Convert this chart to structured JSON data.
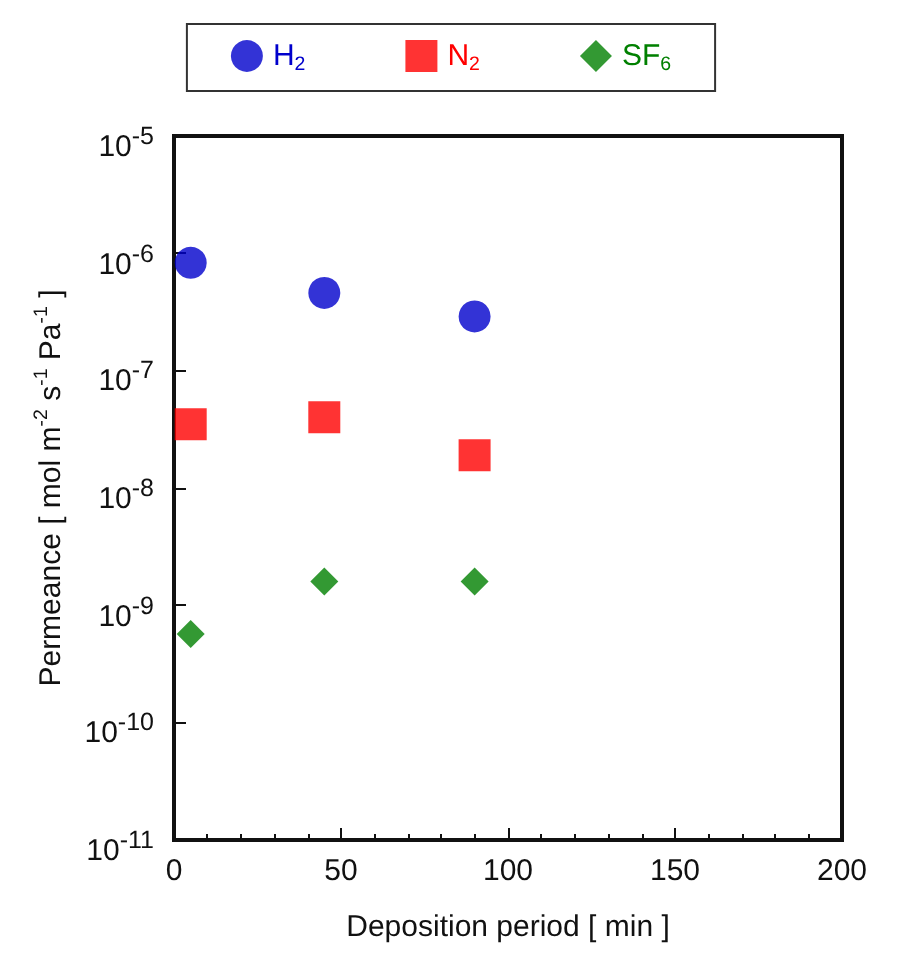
{
  "chart_data": {
    "type": "scatter",
    "xlabel": "Deposition period [ min ]",
    "ylabel": "Permeance [ mol m$^{-2}$ s$^{-1}$ Pa$^{-1}$ ]",
    "x": [
      5,
      45,
      90
    ],
    "series": [
      {
        "name": "H$_{2}$",
        "color": "#0000cc",
        "marker": "circle",
        "values": [
          8.3e-07,
          4.6e-07,
          2.9e-07
        ]
      },
      {
        "name": "N$_{2}$",
        "color": "#ff0000",
        "marker": "square",
        "values": [
          3.5e-08,
          4e-08,
          1.9e-08
        ]
      },
      {
        "name": "SF$_{6}$",
        "color": "#008000",
        "marker": "diamond",
        "values": [
          5.7e-10,
          1.6e-09,
          1.6e-09
        ]
      }
    ],
    "log": "y",
    "xlim": [
      0,
      200
    ],
    "xticks": [
      0,
      50,
      100,
      150,
      200
    ],
    "ylim": [
      1e-11,
      1e-05
    ],
    "yticks": [
      {
        "value": 1e-11,
        "label": "10$^{-11}$"
      },
      {
        "value": 1e-10,
        "label": "10$^{-10}$"
      },
      {
        "value": 1e-09,
        "label": "10$^{-9}$"
      },
      {
        "value": 1e-08,
        "label": "10$^{-8}$"
      },
      {
        "value": 1e-07,
        "label": "10$^{-7}$"
      },
      {
        "value": 1e-06,
        "label": "10$^{-6}$"
      },
      {
        "value": 1e-05,
        "label": "10$^{-5}$"
      }
    ],
    "grid": false,
    "legend": "top"
  }
}
